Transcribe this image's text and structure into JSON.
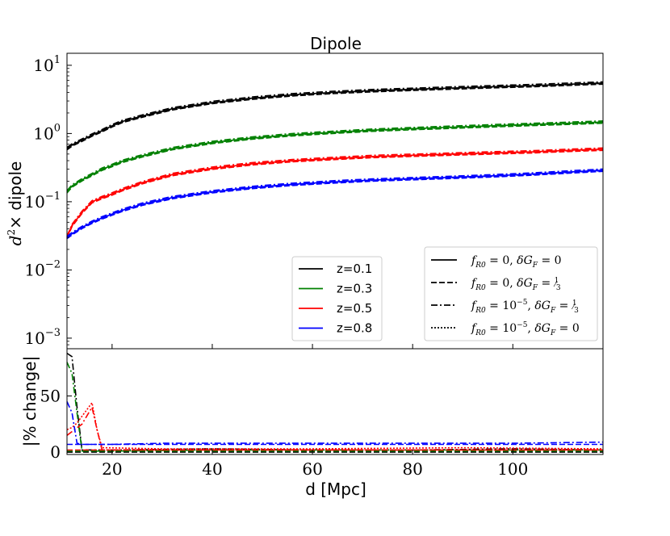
{
  "chart_data": {
    "type": "line",
    "title": "Dipole",
    "xlabel": "d [Mpc]",
    "xlim": [
      11,
      118
    ],
    "xticks": [
      {
        "value": 20,
        "label": "20"
      },
      {
        "value": 40,
        "label": "40"
      },
      {
        "value": 60,
        "label": "60"
      },
      {
        "value": 80,
        "label": "80"
      },
      {
        "value": 100,
        "label": "100"
      }
    ],
    "top_panel": {
      "ylabel_math": "d",
      "ylabel_sup": "2",
      "ylabel_rest": "× dipole",
      "yscale": "log",
      "ylim": [
        0.0007,
        15
      ],
      "yticks": [
        {
          "value": 10,
          "base": "10",
          "exp": "1"
        },
        {
          "value": 1,
          "base": "10",
          "exp": "0"
        },
        {
          "value": 0.1,
          "base": "10",
          "exp": "−1"
        },
        {
          "value": 0.01,
          "base": "10",
          "exp": "−2"
        },
        {
          "value": 0.001,
          "base": "10",
          "exp": "−3"
        }
      ],
      "x": [
        11,
        12,
        14,
        16,
        18,
        20,
        22,
        26,
        32,
        40,
        48,
        56,
        64,
        72,
        80,
        88,
        96,
        104,
        112,
        118
      ],
      "series": [
        {
          "name": "z=0.1",
          "color": "#000000",
          "values": [
            0.6,
            0.68,
            0.8,
            0.95,
            1.1,
            1.3,
            1.5,
            1.8,
            2.3,
            2.85,
            3.3,
            3.7,
            4.0,
            4.25,
            4.45,
            4.65,
            4.85,
            5.05,
            5.3,
            5.5
          ]
        },
        {
          "name": "z=0.3",
          "color": "#008000",
          "values": [
            0.14,
            0.17,
            0.21,
            0.25,
            0.3,
            0.34,
            0.39,
            0.47,
            0.6,
            0.74,
            0.86,
            0.96,
            1.04,
            1.12,
            1.18,
            1.24,
            1.3,
            1.36,
            1.42,
            1.47
          ]
        },
        {
          "name": "z=0.5",
          "color": "#ff0000",
          "values": [
            0.03,
            0.045,
            0.07,
            0.1,
            0.115,
            0.13,
            0.15,
            0.19,
            0.25,
            0.31,
            0.36,
            0.4,
            0.43,
            0.46,
            0.48,
            0.5,
            0.52,
            0.54,
            0.57,
            0.59
          ]
        },
        {
          "name": "z=0.8",
          "color": "#0000ff",
          "values": [
            0.03,
            0.034,
            0.042,
            0.05,
            0.058,
            0.066,
            0.075,
            0.092,
            0.115,
            0.14,
            0.162,
            0.18,
            0.195,
            0.208,
            0.218,
            0.228,
            0.24,
            0.255,
            0.275,
            0.29
          ]
        }
      ],
      "variant_factors": {
        "dashed": 0.96,
        "dashdot": 1.04,
        "dotted": 0.985
      }
    },
    "bottom_panel": {
      "ylabel": "|% change|",
      "ylim": [
        -2,
        92
      ],
      "yticks": [
        {
          "value": 0,
          "label": "0"
        },
        {
          "value": 50,
          "label": "50"
        }
      ],
      "series": [
        {
          "name": "z=0.1 dashdot",
          "color": "#000000",
          "style": "dashdot",
          "x": [
            11,
            12,
            13,
            14,
            20,
            40,
            60,
            80,
            100,
            118
          ],
          "values": [
            88,
            85,
            40,
            2,
            2,
            3,
            2,
            2,
            3,
            2
          ]
        },
        {
          "name": "z=0.3 dashdot",
          "color": "#008000",
          "style": "dashdot",
          "x": [
            11,
            12,
            13,
            14,
            20,
            40,
            60,
            80,
            100,
            118
          ],
          "values": [
            80,
            70,
            35,
            1,
            1,
            2,
            2,
            2,
            2,
            2
          ]
        },
        {
          "name": "z=0.5 dotted",
          "color": "#ff0000",
          "style": "dotted",
          "x": [
            11,
            12,
            13,
            14,
            15,
            16,
            17,
            18,
            30,
            60,
            90,
            118
          ],
          "values": [
            20,
            22,
            26,
            32,
            38,
            44,
            20,
            4,
            3,
            3,
            4,
            3
          ]
        },
        {
          "name": "z=0.5 dashdot",
          "color": "#ff0000",
          "style": "dashdot",
          "x": [
            11,
            14,
            16,
            17,
            18,
            30,
            60,
            90,
            118
          ],
          "values": [
            15,
            25,
            40,
            20,
            2,
            2,
            2,
            2,
            2
          ]
        },
        {
          "name": "z=0.8 dashdot",
          "color": "#0000ff",
          "style": "dashdot",
          "x": [
            11,
            12,
            13,
            14,
            20,
            30,
            40,
            60,
            80,
            100,
            118
          ],
          "values": [
            45,
            35,
            8,
            7,
            7,
            8,
            8,
            8,
            8,
            8,
            9
          ]
        },
        {
          "name": "z=0.8 dashed",
          "color": "#0000ff",
          "style": "dashed",
          "x": [
            11,
            20,
            40,
            60,
            80,
            100,
            118
          ],
          "values": [
            7,
            7,
            7,
            7,
            7,
            7,
            7
          ]
        }
      ]
    },
    "legend_redshift": [
      {
        "label": "z=0.1",
        "color": "#000000"
      },
      {
        "label": "z=0.3",
        "color": "#008000"
      },
      {
        "label": "z=0.5",
        "color": "#ff0000"
      },
      {
        "label": "z=0.8",
        "color": "#0000ff"
      }
    ],
    "legend_style": [
      {
        "style": "solid",
        "fr0": "0",
        "dg": "0"
      },
      {
        "style": "dashed",
        "fr0": "0",
        "dg": "1/3"
      },
      {
        "style": "dashdot",
        "fr0": "10^-5",
        "dg": "1/3"
      },
      {
        "style": "dotted",
        "fr0": "10^-5",
        "dg": "0"
      }
    ]
  }
}
